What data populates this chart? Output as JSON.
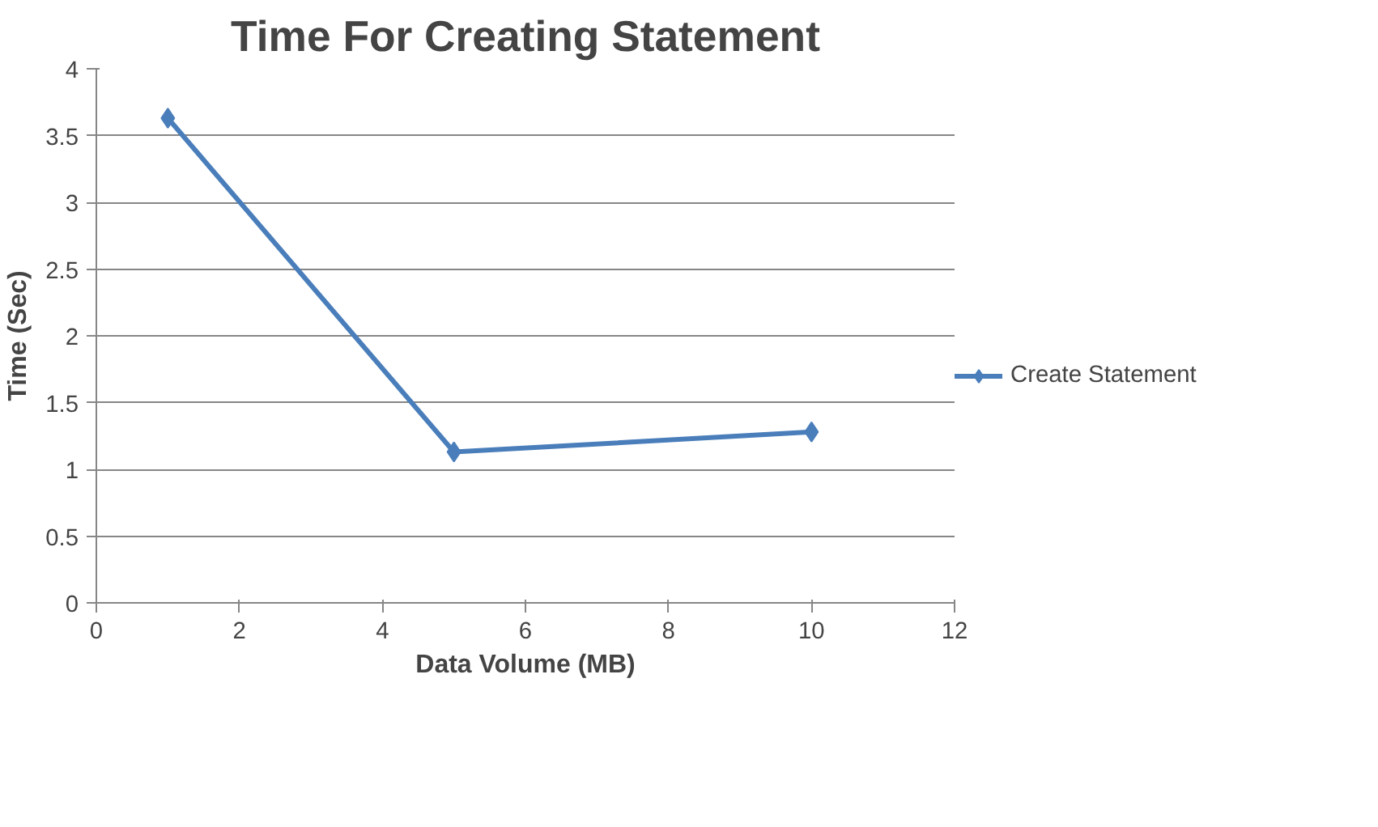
{
  "chart_data": {
    "type": "line",
    "title": "Time For Creating Statement",
    "xlabel": "Data Volume (MB)",
    "ylabel": "Time (Sec)",
    "x": [
      1,
      5,
      10
    ],
    "series": [
      {
        "name": "Create Statement",
        "color": "#4a7ebb",
        "values": [
          3.63,
          1.13,
          1.28
        ]
      }
    ],
    "xlim": [
      0,
      12
    ],
    "xticks": [
      0,
      2,
      4,
      6,
      8,
      10,
      12
    ],
    "ylim": [
      0,
      4
    ],
    "yticks": [
      0,
      0.5,
      1,
      1.5,
      2,
      2.5,
      3,
      3.5,
      4
    ],
    "grid": "y",
    "legend": "right",
    "marker": "diamond",
    "line_style": "solid"
  }
}
